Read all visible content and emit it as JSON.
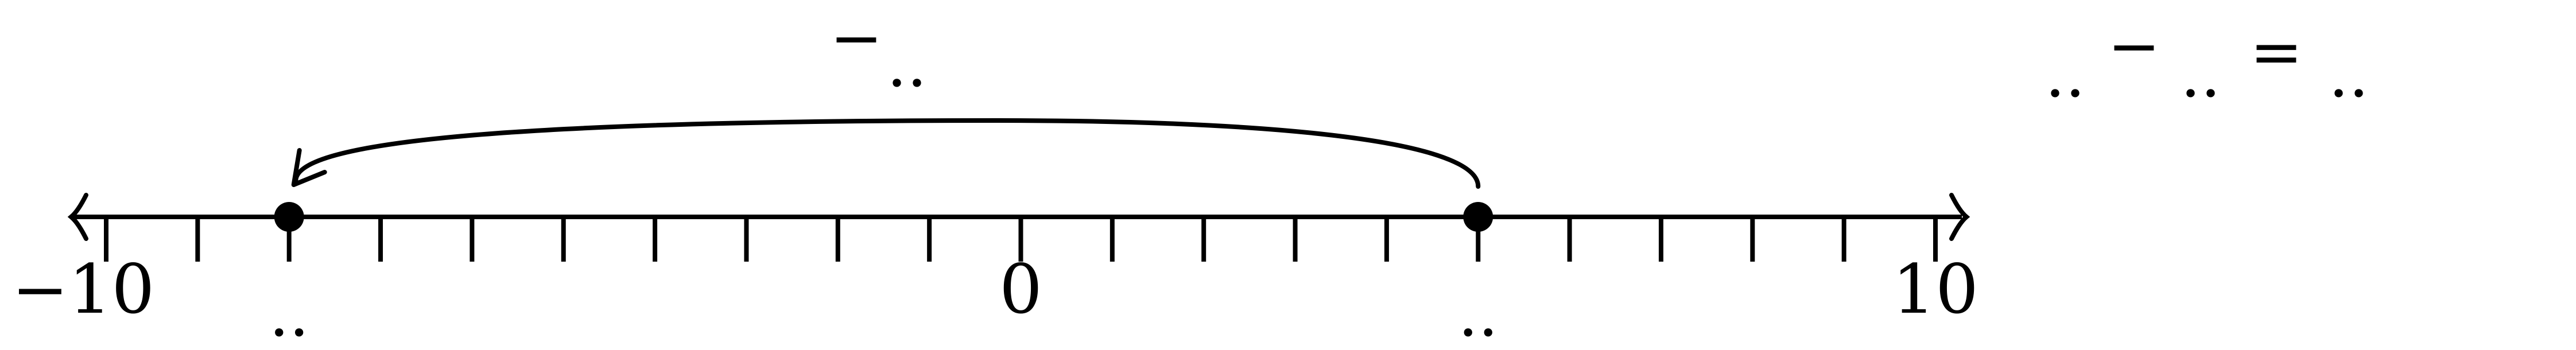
{
  "number_line": {
    "min": -10,
    "max": 10,
    "step": 1,
    "labeled_ticks": [
      {
        "value": -10,
        "text": "−10"
      },
      {
        "value": 0,
        "text": "0"
      },
      {
        "value": 10,
        "text": "10"
      }
    ]
  },
  "points": [
    {
      "value": -8,
      "label": ".."
    },
    {
      "value": 5,
      "label": ".."
    }
  ],
  "jump": {
    "from": 5,
    "to": -8,
    "label_sign": "−",
    "label_dots": ".."
  },
  "equation": {
    "term1": "..",
    "op": "−",
    "term2": "..",
    "eq": "=",
    "result": ".."
  }
}
